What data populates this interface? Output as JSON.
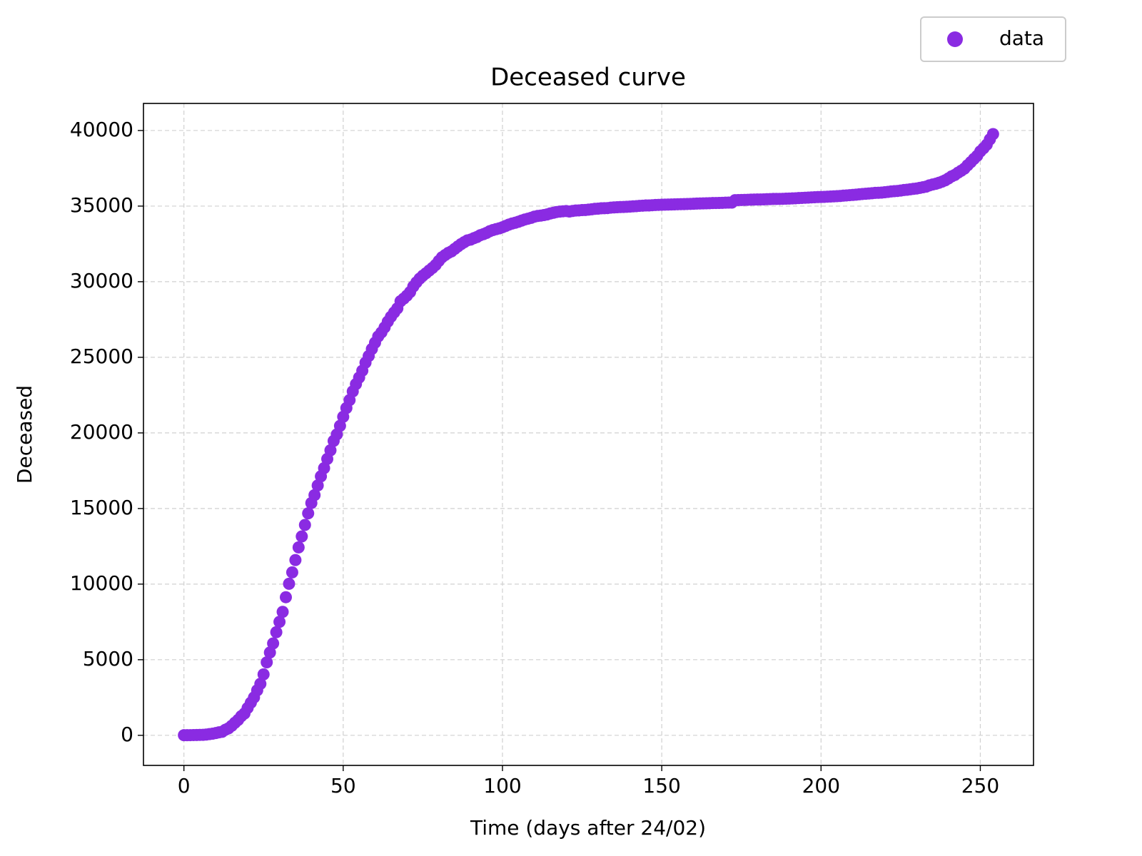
{
  "chart_data": {
    "type": "scatter",
    "title": "Deceased curve",
    "x_label": "Time (days after 24/02)",
    "y_label": "Deceased",
    "x": [
      0,
      1,
      2,
      3,
      4,
      5,
      6,
      7,
      8,
      9,
      10,
      11,
      12,
      13,
      14,
      15,
      16,
      17,
      18,
      19,
      20,
      21,
      22,
      23,
      24,
      25,
      26,
      27,
      28,
      29,
      30,
      31,
      32,
      33,
      34,
      35,
      36,
      37,
      38,
      39,
      40,
      41,
      42,
      43,
      44,
      45,
      46,
      47,
      48,
      49,
      50,
      51,
      52,
      53,
      54,
      55,
      56,
      57,
      58,
      59,
      60,
      61,
      62,
      63,
      64,
      65,
      66,
      67,
      68,
      69,
      70,
      71,
      72,
      73,
      74,
      75,
      76,
      77,
      78,
      79,
      80,
      81,
      82,
      83,
      84,
      85,
      86,
      87,
      88,
      89,
      90,
      91,
      92,
      93,
      94,
      95,
      96,
      97,
      98,
      99,
      100,
      101,
      102,
      103,
      104,
      105,
      106,
      107,
      108,
      109,
      110,
      111,
      112,
      113,
      114,
      115,
      116,
      117,
      118,
      119,
      120,
      121,
      122,
      123,
      124,
      125,
      126,
      127,
      128,
      129,
      130,
      131,
      132,
      133,
      134,
      135,
      136,
      137,
      138,
      139,
      140,
      141,
      142,
      143,
      144,
      145,
      146,
      147,
      148,
      149,
      150,
      151,
      152,
      153,
      154,
      155,
      156,
      157,
      158,
      159,
      160,
      161,
      162,
      163,
      164,
      165,
      166,
      167,
      168,
      169,
      170,
      171,
      172,
      173,
      174,
      175,
      176,
      177,
      178,
      179,
      180,
      181,
      182,
      183,
      184,
      185,
      186,
      187,
      188,
      189,
      190,
      191,
      192,
      193,
      194,
      195,
      196,
      197,
      198,
      199,
      200,
      201,
      202,
      203,
      204,
      205,
      206,
      207,
      208,
      209,
      210,
      211,
      212,
      213,
      214,
      215,
      216,
      217,
      218,
      219,
      220,
      221,
      222,
      223,
      224,
      225,
      226,
      227,
      228,
      229,
      230,
      231,
      232,
      233,
      234,
      235,
      236,
      237,
      238,
      239,
      240,
      241,
      242,
      243,
      244,
      245,
      246,
      247,
      248,
      249,
      250,
      251,
      252,
      253,
      254
    ],
    "series": [
      {
        "name": "data",
        "color": "#8a2be2",
        "values": [
          7,
          10,
          12,
          17,
          21,
          29,
          34,
          52,
          79,
          107,
          148,
          197,
          233,
          366,
          463,
          631,
          827,
          1016,
          1266,
          1441,
          1809,
          2158,
          2503,
          2978,
          3405,
          4032,
          4825,
          5476,
          6077,
          6820,
          7503,
          8165,
          9134,
          10023,
          10779,
          11591,
          12428,
          13155,
          13915,
          14681,
          15362,
          15887,
          16523,
          17127,
          17669,
          18279,
          18849,
          19468,
          19899,
          20465,
          21067,
          21645,
          22170,
          22745,
          23227,
          23660,
          24114,
          24648,
          25085,
          25549,
          25969,
          26384,
          26644,
          26977,
          27359,
          27682,
          27967,
          28236,
          28710,
          28884,
          29079,
          29315,
          29684,
          29958,
          30201,
          30395,
          30560,
          30739,
          30911,
          31106,
          31368,
          31610,
          31763,
          31908,
          32007,
          32169,
          32330,
          32486,
          32616,
          32735,
          32785,
          32877,
          32955,
          33072,
          33142,
          33229,
          33340,
          33415,
          33475,
          33530,
          33601,
          33689,
          33774,
          33846,
          33899,
          33964,
          34043,
          34114,
          34167,
          34223,
          34301,
          34345,
          34371,
          34405,
          34448,
          34514,
          34561,
          34610,
          34634,
          34657,
          34675,
          34644,
          34678,
          34708,
          34716,
          34738,
          34744,
          34767,
          34788,
          34818,
          34833,
          34854,
          34861,
          34869,
          34899,
          34914,
          34926,
          34938,
          34945,
          34954,
          34967,
          34984,
          34997,
          35017,
          35028,
          35042,
          35045,
          35058,
          35073,
          35082,
          35092,
          35097,
          35102,
          35107,
          35112,
          35123,
          35129,
          35132,
          35141,
          35146,
          35154,
          35166,
          35171,
          35181,
          35187,
          35190,
          35203,
          35205,
          35209,
          35215,
          35225,
          35231,
          35234,
          35392,
          35400,
          35405,
          35412,
          35418,
          35427,
          35430,
          35437,
          35441,
          35445,
          35458,
          35463,
          35472,
          35473,
          35477,
          35483,
          35491,
          35497,
          35507,
          35518,
          35534,
          35541,
          35553,
          35563,
          35577,
          35587,
          35597,
          35603,
          35610,
          35624,
          35633,
          35645,
          35658,
          35668,
          35692,
          35707,
          35724,
          35738,
          35758,
          35781,
          35801,
          35818,
          35835,
          35851,
          35875,
          35880,
          35894,
          35918,
          35941,
          35968,
          35986,
          36002,
          36030,
          36061,
          36083,
          36111,
          36140,
          36166,
          36205,
          36246,
          36289,
          36372,
          36427,
          36474,
          36543,
          36616,
          36705,
          36832,
          36968,
          37059,
          37210,
          37338,
          37479,
          37700,
          37905,
          38122,
          38321,
          38618,
          38826,
          39059,
          39412,
          39764
        ]
      }
    ],
    "xlim": [
      -12.7,
      266.7
    ],
    "xticks": [
      0,
      50,
      100,
      150,
      200,
      250
    ],
    "ylim": [
      -1990,
      41790
    ],
    "yticks": [
      0,
      5000,
      10000,
      15000,
      20000,
      25000,
      30000,
      35000,
      40000
    ],
    "grid": true,
    "legend": "upper right"
  }
}
